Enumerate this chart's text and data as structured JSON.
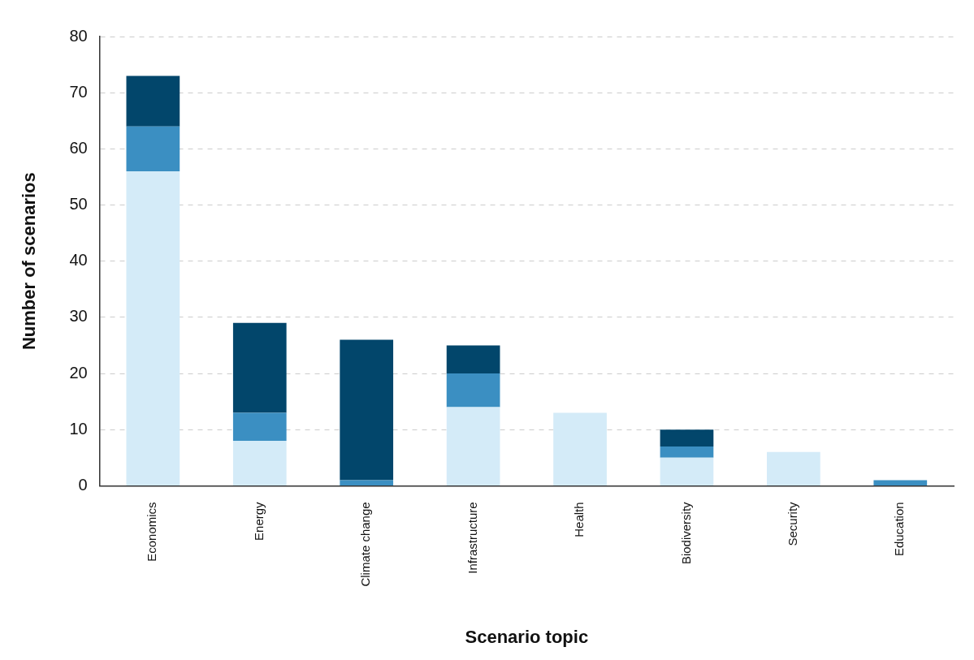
{
  "chart_data": {
    "type": "bar",
    "stacked": true,
    "xlabel": "Scenario topic",
    "ylabel": "Number of scenarios",
    "categories": [
      "Economics",
      "Energy",
      "Climate change",
      "Infrastructure",
      "Health",
      "Biodiversity",
      "Security",
      "Education"
    ],
    "series": [
      {
        "color": "#d4ebf8",
        "values": [
          56,
          8,
          0,
          14,
          13,
          5,
          6,
          0
        ]
      },
      {
        "color": "#3b8fc2",
        "values": [
          8,
          5,
          1,
          6,
          0,
          2,
          0,
          1
        ]
      },
      {
        "color": "#02466b",
        "values": [
          9,
          16,
          25,
          5,
          0,
          3,
          0,
          0
        ]
      }
    ],
    "ylim": [
      0,
      80
    ],
    "yticks": [
      0,
      10,
      20,
      30,
      40,
      50,
      60,
      70,
      80
    ],
    "grid": "y",
    "legend": false
  }
}
